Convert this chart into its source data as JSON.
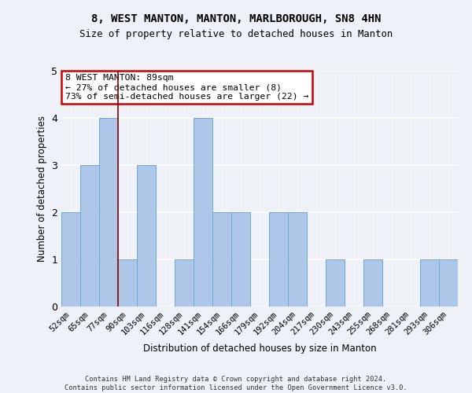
{
  "title": "8, WEST MANTON, MANTON, MARLBOROUGH, SN8 4HN",
  "subtitle": "Size of property relative to detached houses in Manton",
  "xlabel": "Distribution of detached houses by size in Manton",
  "ylabel": "Number of detached properties",
  "bar_labels": [
    "52sqm",
    "65sqm",
    "77sqm",
    "90sqm",
    "103sqm",
    "116sqm",
    "128sqm",
    "141sqm",
    "154sqm",
    "166sqm",
    "179sqm",
    "192sqm",
    "204sqm",
    "217sqm",
    "230sqm",
    "243sqm",
    "255sqm",
    "268sqm",
    "281sqm",
    "293sqm",
    "306sqm"
  ],
  "bar_values": [
    2,
    3,
    4,
    1,
    3,
    0,
    1,
    4,
    2,
    2,
    0,
    2,
    2,
    0,
    1,
    0,
    1,
    0,
    0,
    1,
    1
  ],
  "bar_color": "#aec6e8",
  "bar_edge_color": "#6fa8d6",
  "property_sqm": 89,
  "annotation_text": "8 WEST MANTON: 89sqm\n← 27% of detached houses are smaller (8)\n73% of semi-detached houses are larger (22) →",
  "annotation_box_color": "#ffffff",
  "annotation_box_edge": "#cc0000",
  "vline_color": "#880000",
  "ylim": [
    0,
    5
  ],
  "yticks": [
    0,
    1,
    2,
    3,
    4,
    5
  ],
  "footnote": "Contains HM Land Registry data © Crown copyright and database right 2024.\nContains public sector information licensed under the Open Government Licence v3.0.",
  "bg_color": "#eef2f8",
  "plot_bg_color": "#eef2f8",
  "vline_index": 2.5
}
